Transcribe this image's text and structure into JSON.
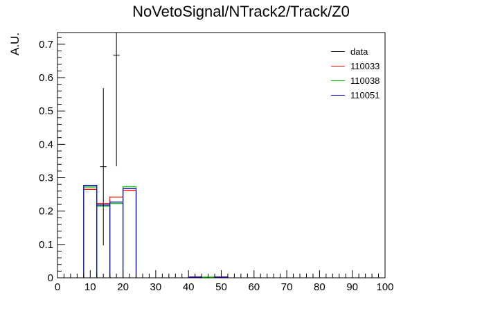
{
  "chart_data": {
    "type": "histogram",
    "title": "NoVetoSignal/NTrack2/Track/Z0",
    "xlabel": "",
    "ylabel": "A.U.",
    "xlim": [
      0,
      100
    ],
    "ylim": [
      0,
      0.735
    ],
    "x_ticks": [
      "0",
      "10",
      "20",
      "30",
      "40",
      "50",
      "60",
      "70",
      "80",
      "90",
      "100"
    ],
    "y_ticks": [
      "0",
      "0.1",
      "0.2",
      "0.3",
      "0.4",
      "0.5",
      "0.6",
      "0.7"
    ],
    "bin_width": 4,
    "grid": false,
    "legend_position": "top-right",
    "series": [
      {
        "name": "data",
        "color": "#000000",
        "style": "errorbar",
        "points": [
          {
            "x": 14,
            "y": 0.333,
            "yerr": 0.236
          },
          {
            "x": 18,
            "y": 0.667,
            "yerr": 0.333
          }
        ]
      },
      {
        "name": "110033",
        "color": "#ff0000",
        "style": "step",
        "bins": [
          {
            "x0": 8,
            "y": 0.265
          },
          {
            "x0": 12,
            "y": 0.223
          },
          {
            "x0": 16,
            "y": 0.242
          },
          {
            "x0": 20,
            "y": 0.262
          },
          {
            "x0": 40,
            "y": 0.002
          },
          {
            "x0": 48,
            "y": 0.002
          }
        ]
      },
      {
        "name": "110038",
        "color": "#00cc00",
        "style": "step",
        "bins": [
          {
            "x0": 8,
            "y": 0.272
          },
          {
            "x0": 12,
            "y": 0.214
          },
          {
            "x0": 16,
            "y": 0.223
          },
          {
            "x0": 20,
            "y": 0.273
          },
          {
            "x0": 44,
            "y": 0.002
          }
        ]
      },
      {
        "name": "110051",
        "color": "#0000cc",
        "style": "step",
        "bins": [
          {
            "x0": 8,
            "y": 0.277
          },
          {
            "x0": 12,
            "y": 0.218
          },
          {
            "x0": 16,
            "y": 0.227
          },
          {
            "x0": 20,
            "y": 0.267
          },
          {
            "x0": 40,
            "y": 0.002
          },
          {
            "x0": 48,
            "y": 0.002
          }
        ]
      }
    ]
  }
}
